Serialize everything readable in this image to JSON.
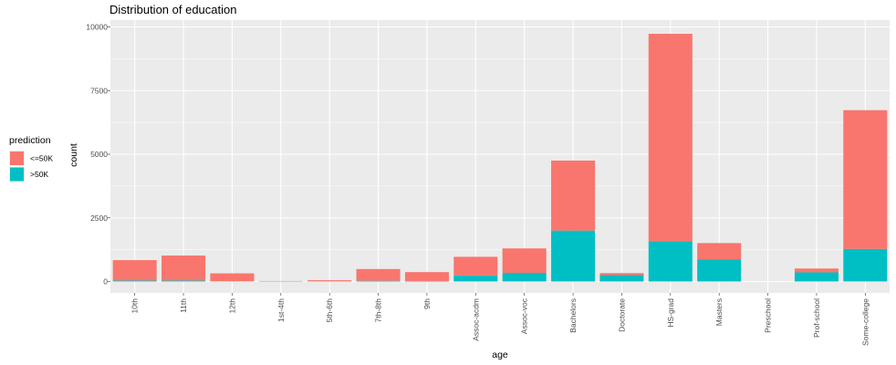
{
  "chart_data": {
    "type": "bar",
    "stacked": true,
    "title": "Distribution of education",
    "xlabel": "age",
    "ylabel": "count",
    "ylim": [
      0,
      10350
    ],
    "yticks": [
      0,
      2500,
      5000,
      7500,
      10000
    ],
    "ytick_labels": [
      "0",
      "2500",
      "5000",
      "7500",
      "10000"
    ],
    "categories": [
      "10th",
      "11th",
      "12th",
      "1st-4th",
      "5th-6th",
      "7th-8th",
      "9th",
      "Assoc-acdm",
      "Assoc-voc",
      "Bachelors",
      "Doctorate",
      "HS-grad",
      "Masters",
      "Preschool",
      "Prof-school",
      "Some-college"
    ],
    "series": [
      {
        "name": "<=50K",
        "color": "#F8766D",
        "values": [
          800,
          980,
          310,
          20,
          50,
          460,
          350,
          730,
          960,
          2750,
          80,
          8150,
          650,
          0,
          150,
          5450
        ]
      },
      {
        "name": ">50K",
        "color": "#00BFC4",
        "values": [
          40,
          40,
          10,
          0,
          0,
          30,
          20,
          240,
          340,
          2000,
          250,
          1580,
          860,
          0,
          360,
          1280
        ]
      }
    ],
    "legend": {
      "title": "prediction",
      "placement": "left"
    },
    "grid": true
  }
}
